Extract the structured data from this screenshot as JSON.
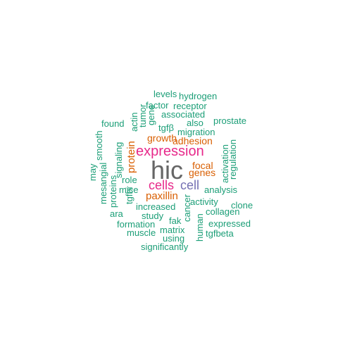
{
  "palette": {
    "green": "#1b9e77",
    "orange": "#d95f02",
    "purple": "#7570b3",
    "magenta": "#e7298a",
    "gray": "#666666"
  },
  "words": [
    {
      "text": "hic",
      "color": "gray"
    },
    {
      "text": "expression",
      "color": "magenta"
    },
    {
      "text": "cells",
      "color": "magenta"
    },
    {
      "text": "cell",
      "color": "purple"
    },
    {
      "text": "paxillin",
      "color": "orange"
    },
    {
      "text": "protein",
      "color": "orange"
    },
    {
      "text": "focal",
      "color": "orange"
    },
    {
      "text": "genes",
      "color": "orange"
    },
    {
      "text": "adhesion",
      "color": "orange"
    },
    {
      "text": "growth",
      "color": "orange"
    },
    {
      "text": "levels",
      "color": "green"
    },
    {
      "text": "hydrogen",
      "color": "green"
    },
    {
      "text": "factor",
      "color": "green"
    },
    {
      "text": "receptor",
      "color": "green"
    },
    {
      "text": "associated",
      "color": "green"
    },
    {
      "text": "also",
      "color": "green"
    },
    {
      "text": "prostate",
      "color": "green"
    },
    {
      "text": "found",
      "color": "green"
    },
    {
      "text": "tgfβ",
      "color": "green"
    },
    {
      "text": "migration",
      "color": "green"
    },
    {
      "text": "actin",
      "color": "green"
    },
    {
      "text": "tumor",
      "color": "green"
    },
    {
      "text": "gene",
      "color": "green"
    },
    {
      "text": "smooth",
      "color": "green"
    },
    {
      "text": "signaling",
      "color": "green"
    },
    {
      "text": "may",
      "color": "green"
    },
    {
      "text": "mesangial",
      "color": "green"
    },
    {
      "text": "activation",
      "color": "green"
    },
    {
      "text": "regulation",
      "color": "green"
    },
    {
      "text": "role",
      "color": "green"
    },
    {
      "text": "mice",
      "color": "green"
    },
    {
      "text": "proteins",
      "color": "green"
    },
    {
      "text": "analysis",
      "color": "green"
    },
    {
      "text": "tgfbi",
      "color": "green"
    },
    {
      "text": "increased",
      "color": "green"
    },
    {
      "text": "cancer",
      "color": "green"
    },
    {
      "text": "activity",
      "color": "green"
    },
    {
      "text": "clone",
      "color": "green"
    },
    {
      "text": "ara",
      "color": "green"
    },
    {
      "text": "study",
      "color": "green"
    },
    {
      "text": "collagen",
      "color": "green"
    },
    {
      "text": "formation",
      "color": "green"
    },
    {
      "text": "fak",
      "color": "green"
    },
    {
      "text": "human",
      "color": "green"
    },
    {
      "text": "expressed",
      "color": "green"
    },
    {
      "text": "muscle",
      "color": "green"
    },
    {
      "text": "matrix",
      "color": "green"
    },
    {
      "text": "tgfbeta",
      "color": "green"
    },
    {
      "text": "using",
      "color": "green"
    },
    {
      "text": "significantly",
      "color": "green"
    }
  ]
}
